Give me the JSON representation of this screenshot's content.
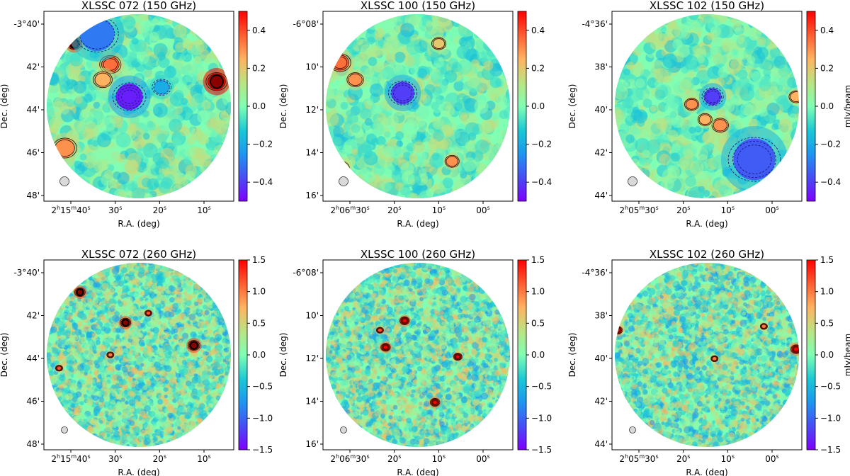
{
  "figure": {
    "type": "multi_panel_sz_maps"
  },
  "chart_data": [
    {
      "type": "heatmap",
      "title": "XLSSC 072 (150 GHz)",
      "xlabel": "R.A. (deg)",
      "ylabel": "Dec. (deg)",
      "x_ticks": [
        {
          "h": "2",
          "m": "15",
          "s": "40"
        },
        {
          "s": "30"
        },
        {
          "s": "20"
        },
        {
          "s": "10"
        }
      ],
      "y_ticks": [
        "-3°40'",
        "42'",
        "44'",
        "46'",
        "48'"
      ],
      "colorbar": {
        "label": "",
        "ticks": [
          "0.4",
          "0.2",
          "0.0",
          "−0.2",
          "−0.4"
        ],
        "range": [
          -0.5,
          0.5
        ]
      },
      "sources": [
        {
          "x": 0.16,
          "y": 0.17,
          "amp": 0.8,
          "r": 0.03,
          "sign": 1
        },
        {
          "x": 0.91,
          "y": 0.37,
          "amp": 1.2,
          "r": 0.045,
          "sign": 1
        },
        {
          "x": 0.35,
          "y": 0.28,
          "amp": 0.35,
          "r": 0.045,
          "sign": 1
        },
        {
          "x": 0.31,
          "y": 0.36,
          "amp": 0.25,
          "r": 0.04,
          "sign": 1
        },
        {
          "x": 0.11,
          "y": 0.72,
          "amp": 0.3,
          "r": 0.05,
          "sign": 1
        },
        {
          "x": 0.45,
          "y": 0.45,
          "amp": -0.45,
          "r": 0.07,
          "sign": -1
        },
        {
          "x": 0.62,
          "y": 0.4,
          "amp": -0.2,
          "r": 0.04,
          "sign": -1
        },
        {
          "x": 0.28,
          "y": 0.12,
          "amp": -0.3,
          "r": 0.09,
          "sign": -1
        }
      ],
      "seed": 11,
      "noise": 0.12,
      "blob": 0.025
    },
    {
      "type": "heatmap",
      "title": "XLSSC 100 (150 GHz)",
      "xlabel": "R.A. (deg)",
      "ylabel": "Dec. (deg)",
      "x_ticks": [
        {
          "h": "2",
          "m": "06",
          "s": "30"
        },
        {
          "s": "20"
        },
        {
          "s": "10"
        },
        {
          "s": "00"
        }
      ],
      "y_ticks": [
        "-6°08'",
        "10'",
        "12'",
        "14'",
        "16'"
      ],
      "colorbar": {
        "label": "",
        "ticks": [
          "0.4",
          "0.2",
          "0.0",
          "−0.2",
          "−0.4"
        ],
        "range": [
          -0.5,
          0.5
        ]
      },
      "sources": [
        {
          "x": 0.09,
          "y": 0.27,
          "amp": 0.35,
          "r": 0.045,
          "sign": 1
        },
        {
          "x": 0.17,
          "y": 0.36,
          "amp": 0.3,
          "r": 0.035,
          "sign": 1
        },
        {
          "x": 0.68,
          "y": 0.79,
          "amp": 0.3,
          "r": 0.03,
          "sign": 1
        },
        {
          "x": 0.61,
          "y": 0.17,
          "amp": 0.2,
          "r": 0.03,
          "sign": 1
        },
        {
          "x": 0.42,
          "y": 0.43,
          "amp": -0.4,
          "r": 0.06,
          "sign": -1
        },
        {
          "x": 0.09,
          "y": 0.83,
          "amp": 0.25,
          "r": 0.04,
          "sign": 1
        }
      ],
      "seed": 23,
      "noise": 0.12,
      "blob": 0.025
    },
    {
      "type": "heatmap",
      "title": "XLSSC 102 (150 GHz)",
      "xlabel": "R.A. (deg)",
      "ylabel": "Dec. (deg)",
      "x_ticks": [
        {
          "h": "2",
          "m": "05",
          "s": "30"
        },
        {
          "s": "20"
        },
        {
          "s": "10"
        },
        {
          "s": "00"
        }
      ],
      "y_ticks": [
        "-4°36'",
        "38'",
        "40'",
        "42'",
        "44'"
      ],
      "colorbar": {
        "label": "mJy/beam",
        "ticks": [
          "0.4",
          "0.2",
          "0.0",
          "−0.2",
          "−0.4"
        ],
        "range": [
          -0.5,
          0.5
        ]
      },
      "sources": [
        {
          "x": 0.42,
          "y": 0.49,
          "amp": 0.3,
          "r": 0.03,
          "sign": 1
        },
        {
          "x": 0.57,
          "y": 0.6,
          "amp": 0.3,
          "r": 0.035,
          "sign": 1
        },
        {
          "x": 0.49,
          "y": 0.57,
          "amp": 0.25,
          "r": 0.03,
          "sign": 1
        },
        {
          "x": 0.53,
          "y": 0.45,
          "amp": -0.4,
          "r": 0.045,
          "sign": -1
        },
        {
          "x": 0.97,
          "y": 0.45,
          "amp": 0.25,
          "r": 0.03,
          "sign": 1
        },
        {
          "x": 0.75,
          "y": 0.78,
          "amp": -0.35,
          "r": 0.11,
          "sign": -1
        }
      ],
      "seed": 37,
      "noise": 0.12,
      "blob": 0.025
    },
    {
      "type": "heatmap",
      "title": "XLSSC 072 (260 GHz)",
      "xlabel": "R.A. (deg)",
      "ylabel": "Dec. (deg)",
      "x_ticks": [
        {
          "h": "2",
          "m": "15",
          "s": "40"
        },
        {
          "s": "30"
        },
        {
          "s": "20"
        },
        {
          "s": "10"
        }
      ],
      "y_ticks": [
        "-3°40'",
        "42'",
        "44'",
        "46'",
        "48'"
      ],
      "colorbar": {
        "label": "",
        "ticks": [
          "1.5",
          "1.0",
          "0.5",
          "0.0",
          "−0.5",
          "−1.0",
          "−1.5"
        ],
        "range": [
          -1.5,
          1.5
        ]
      },
      "sources": [
        {
          "x": 0.19,
          "y": 0.17,
          "amp": 2.5,
          "r": 0.022,
          "sign": 1
        },
        {
          "x": 0.43,
          "y": 0.33,
          "amp": 2.5,
          "r": 0.022,
          "sign": 1
        },
        {
          "x": 0.79,
          "y": 0.45,
          "amp": 2.5,
          "r": 0.025,
          "sign": 1
        },
        {
          "x": 0.55,
          "y": 0.28,
          "amp": 1.2,
          "r": 0.015,
          "sign": 1
        },
        {
          "x": 0.08,
          "y": 0.57,
          "amp": 1.2,
          "r": 0.015,
          "sign": 1
        },
        {
          "x": 0.35,
          "y": 0.5,
          "amp": 1.0,
          "r": 0.015,
          "sign": 1
        }
      ],
      "seed": 51,
      "noise": 0.55,
      "blob": 0.012
    },
    {
      "type": "heatmap",
      "title": "XLSSC 100 (260 GHz)",
      "xlabel": "R.A. (deg)",
      "ylabel": "Dec. (deg)",
      "x_ticks": [
        {
          "h": "2",
          "m": "06",
          "s": "30"
        },
        {
          "s": "20"
        },
        {
          "s": "10"
        },
        {
          "s": "00"
        }
      ],
      "y_ticks": [
        "-6°08'",
        "10'",
        "12'",
        "14'",
        "16'"
      ],
      "colorbar": {
        "label": "",
        "ticks": [
          "1.5",
          "1.0",
          "0.5",
          "0.0",
          "−0.5",
          "−1.0",
          "−1.5"
        ],
        "range": [
          -1.5,
          1.5
        ]
      },
      "sources": [
        {
          "x": 0.43,
          "y": 0.32,
          "amp": 2.0,
          "r": 0.02,
          "sign": 1
        },
        {
          "x": 0.33,
          "y": 0.46,
          "amp": 2.0,
          "r": 0.02,
          "sign": 1
        },
        {
          "x": 0.59,
          "y": 0.75,
          "amp": 2.0,
          "r": 0.02,
          "sign": 1
        },
        {
          "x": 0.71,
          "y": 0.51,
          "amp": 1.5,
          "r": 0.018,
          "sign": 1
        },
        {
          "x": 0.3,
          "y": 0.37,
          "amp": 1.2,
          "r": 0.015,
          "sign": 1
        }
      ],
      "seed": 67,
      "noise": 0.55,
      "blob": 0.012
    },
    {
      "type": "heatmap",
      "title": "XLSSC 102 (260 GHz)",
      "xlabel": "R.A. (deg)",
      "ylabel": "Dec. (deg)",
      "x_ticks": [
        {
          "h": "2",
          "m": "05",
          "s": "30"
        },
        {
          "s": "20"
        },
        {
          "s": "10"
        },
        {
          "s": "00"
        }
      ],
      "y_ticks": [
        "-4°36'",
        "38'",
        "40'",
        "42'",
        "44'"
      ],
      "colorbar": {
        "label": "mJy/beam",
        "ticks": [
          "1.5",
          "1.0",
          "0.5",
          "0.0",
          "−0.5",
          "−1.0",
          "−1.5"
        ],
        "range": [
          -1.5,
          1.5
        ]
      },
      "sources": [
        {
          "x": 0.97,
          "y": 0.47,
          "amp": 2.0,
          "r": 0.022,
          "sign": 1
        },
        {
          "x": 0.03,
          "y": 0.37,
          "amp": 1.5,
          "r": 0.02,
          "sign": 1
        },
        {
          "x": 0.8,
          "y": 0.35,
          "amp": 1.0,
          "r": 0.015,
          "sign": 1
        },
        {
          "x": 0.54,
          "y": 0.52,
          "amp": 1.0,
          "r": 0.015,
          "sign": 1
        },
        {
          "x": 0.85,
          "y": 0.88,
          "amp": 1.5,
          "r": 0.02,
          "sign": 1
        }
      ],
      "seed": 83,
      "noise": 0.55,
      "blob": 0.012
    }
  ]
}
